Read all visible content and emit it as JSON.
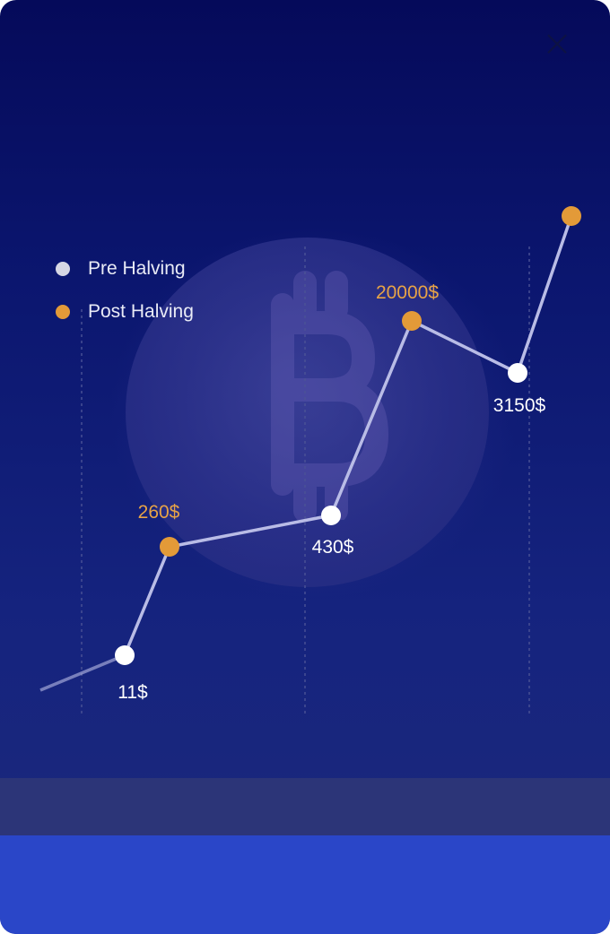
{
  "legend": [
    {
      "label": "Pre Halving",
      "color": "#d6d7e4"
    },
    {
      "label": "Post Halving",
      "color": "#e39a38"
    }
  ],
  "chart_data": {
    "type": "line",
    "series": [
      {
        "name": "Pre Halving",
        "color": "#ffffff",
        "points": [
          {
            "value": 11,
            "label": "11$"
          },
          {
            "value": 430,
            "label": "430$"
          },
          {
            "value": 3150,
            "label": "3150$"
          }
        ]
      },
      {
        "name": "Post Halving",
        "color": "#e39a38",
        "points": [
          {
            "value": 260,
            "label": "260$"
          },
          {
            "value": 20000,
            "label": "20000$"
          },
          {
            "value": null,
            "label": ""
          }
        ]
      }
    ],
    "order": [
      "Pre Halving",
      "Post Halving",
      "Pre Halving",
      "Post Halving",
      "Pre Halving",
      "Post Halving"
    ],
    "xlabel": "",
    "ylabel": ""
  },
  "colors": {
    "line": "#b9bce6",
    "pre_dot": "#ffffff",
    "post_dot": "#e39a38",
    "pre_label": "#ffffff",
    "post_label": "#e7a346"
  }
}
